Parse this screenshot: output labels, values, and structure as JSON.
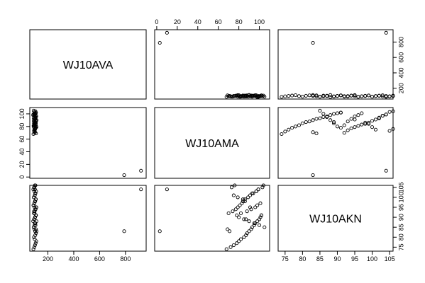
{
  "chart_data": {
    "type": "scatter",
    "variables": [
      "WJ10AVA",
      "WJ10AMA",
      "WJ10AKN"
    ],
    "grid": false,
    "axes": {
      "WJ10AVA": {
        "range": [
          60,
          960
        ],
        "ticks": [
          200,
          400,
          600,
          800
        ],
        "tick_labels": [
          "200",
          "400",
          "600",
          "800"
        ],
        "outer_axes": [
          "bottom",
          "right"
        ]
      },
      "WJ10AMA": {
        "range": [
          -2,
          110
        ],
        "ticks": [
          0,
          20,
          40,
          60,
          80,
          100
        ],
        "tick_labels": [
          "0",
          "20",
          "40",
          "60",
          "80",
          "100"
        ],
        "outer_axes": [
          "top",
          "left"
        ]
      },
      "WJ10AKN": {
        "range": [
          73,
          106
        ],
        "ticks": [
          75,
          80,
          85,
          90,
          95,
          100,
          105
        ],
        "tick_labels": [
          "75",
          "80",
          "85",
          "90",
          "95",
          "100",
          "105"
        ],
        "outer_axes": [
          "bottom",
          "right"
        ]
      }
    },
    "series": [
      {
        "WJ10AVA": [
          920,
          790,
          88,
          95,
          100,
          105,
          110,
          98,
          92,
          102,
          108,
          112,
          96,
          90,
          104,
          99,
          86,
          94,
          101,
          107,
          97,
          93,
          103,
          111,
          89,
          95,
          100,
          106,
          91,
          98,
          102,
          109,
          87,
          96,
          104,
          99,
          93,
          101,
          108,
          90,
          97,
          103,
          112,
          94,
          100,
          106,
          92,
          98,
          105,
          110,
          88,
          96,
          102,
          107,
          91,
          99,
          104,
          95,
          100,
          108,
          93,
          97
        ],
        "WJ10AMA": [
          10,
          3,
          68,
          72,
          75,
          78,
          80,
          82,
          85,
          87,
          88,
          90,
          92,
          93,
          95,
          96,
          98,
          100,
          101,
          102,
          70,
          74,
          77,
          79,
          81,
          83,
          84,
          86,
          89,
          91,
          94,
          97,
          99,
          103,
          104,
          76,
          73,
          71,
          69,
          105,
          100,
          95,
          90,
          85,
          80,
          78,
          82,
          88,
          92,
          96,
          98,
          101,
          86,
          84,
          79,
          75,
          93,
          97,
          99,
          102,
          87,
          91
        ],
        "WJ10AKN": [
          104,
          83,
          74,
          75,
          76,
          77,
          78,
          79,
          80,
          81,
          82,
          83,
          84,
          85,
          86,
          87,
          88,
          89,
          90,
          91,
          92,
          93,
          94,
          95,
          96,
          97,
          98,
          99,
          100,
          101,
          102,
          103,
          104,
          105,
          106,
          106,
          105,
          83,
          84,
          85,
          86,
          87,
          88,
          89,
          90,
          91,
          92,
          93,
          94,
          95,
          96,
          97,
          98,
          99,
          100,
          101,
          102,
          103,
          104,
          91,
          89,
          95
        ]
      }
    ]
  }
}
